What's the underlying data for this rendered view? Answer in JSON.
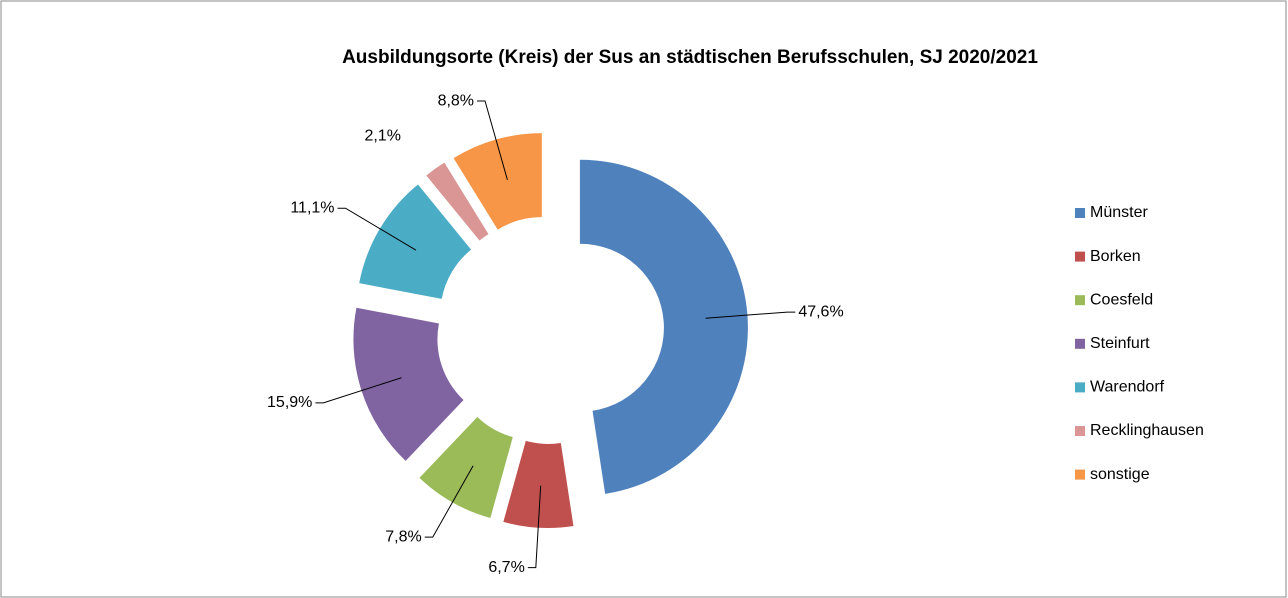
{
  "chart_data": {
    "type": "donut",
    "title": "Ausbildungsorte (Kreis) der Sus an städtischen Berufsschulen, SJ 2020/2021",
    "categories": [
      "Münster",
      "Borken",
      "Coesfeld",
      "Steinfurt",
      "Warendorf",
      "Recklinghausen",
      "sonstige"
    ],
    "values": [
      47.6,
      6.7,
      7.8,
      15.9,
      11.1,
      2.1,
      8.8
    ],
    "value_labels": [
      "47,6%",
      "6,7%",
      "7,8%",
      "15,9%",
      "11,1%",
      "2,1%",
      "8,8%"
    ],
    "colors": [
      "#4f81bd",
      "#c0504d",
      "#9bbb59",
      "#8064a2",
      "#4bacc6",
      "#d99694",
      "#f79646"
    ],
    "legend": "right"
  }
}
